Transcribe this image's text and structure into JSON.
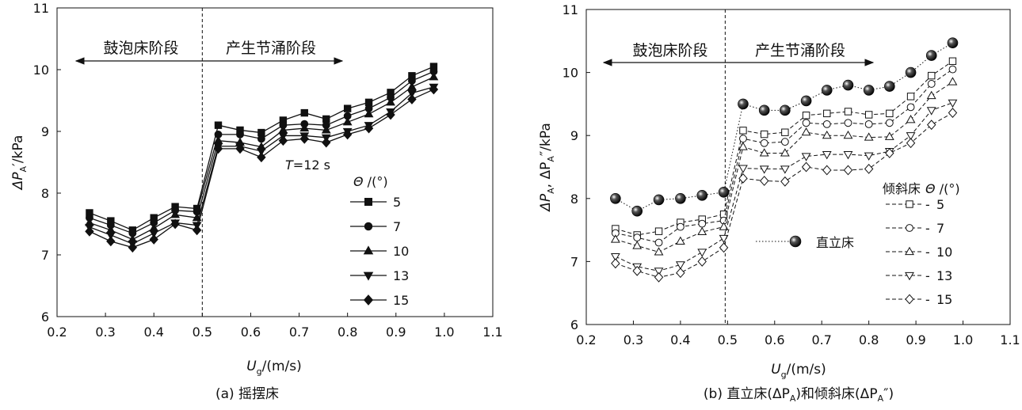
{
  "chart_data": [
    {
      "type": "line",
      "caption": "(a) 摇摆床",
      "xlabel_main": "U",
      "xlabel_sub": "g",
      "xlabel_unit": "/(m/s)",
      "ylabel_main": "ΔP",
      "ylabel_sub": "A",
      "ylabel_unit": "′/kPa",
      "xlim": [
        0.2,
        1.1
      ],
      "ylim": [
        6,
        11
      ],
      "xticks": [
        "0.2",
        "0.3",
        "0.4",
        "0.5",
        "0.6",
        "0.7",
        "0.8",
        "0.9",
        "1.0",
        "1.1"
      ],
      "yticks": [
        "6",
        "7",
        "8",
        "9",
        "10",
        "11"
      ],
      "divider_x": 0.5,
      "phase_left": "鼓泡床阶段",
      "phase_right": "产生节涌阶段",
      "annotation_italic": "T",
      "annotation_rest": "=12 s",
      "legend_title_italic": "Θ",
      "legend_title_rest": " /(°)",
      "x": [
        0.267,
        0.311,
        0.356,
        0.4,
        0.444,
        0.489,
        0.533,
        0.578,
        0.622,
        0.667,
        0.711,
        0.756,
        0.8,
        0.844,
        0.889,
        0.933,
        0.978
      ],
      "series": [
        {
          "name": "5",
          "marker": "square",
          "values": [
            7.68,
            7.55,
            7.4,
            7.6,
            7.78,
            7.75,
            9.1,
            9.02,
            8.98,
            9.18,
            9.3,
            9.2,
            9.37,
            9.47,
            9.63,
            9.9,
            10.05
          ]
        },
        {
          "name": "7",
          "marker": "circle",
          "values": [
            7.6,
            7.48,
            7.35,
            7.52,
            7.72,
            7.7,
            8.95,
            8.95,
            8.88,
            9.1,
            9.12,
            9.1,
            9.25,
            9.37,
            9.55,
            9.82,
            9.97
          ]
        },
        {
          "name": "10",
          "marker": "triangle-up",
          "values": [
            7.52,
            7.4,
            7.25,
            7.43,
            7.65,
            7.6,
            8.85,
            8.82,
            8.75,
            9.02,
            9.05,
            9.02,
            9.15,
            9.28,
            9.47,
            9.72,
            9.88
          ]
        },
        {
          "name": "13",
          "marker": "triangle-down",
          "values": [
            7.45,
            7.32,
            7.18,
            7.35,
            7.52,
            7.48,
            8.76,
            8.76,
            8.68,
            8.93,
            8.93,
            8.9,
            9.0,
            9.1,
            9.32,
            9.62,
            9.72
          ]
        },
        {
          "name": "15",
          "marker": "diamond",
          "values": [
            7.38,
            7.22,
            7.12,
            7.25,
            7.5,
            7.4,
            8.72,
            8.72,
            8.58,
            8.85,
            8.88,
            8.82,
            8.95,
            9.05,
            9.27,
            9.52,
            9.68
          ]
        }
      ]
    },
    {
      "type": "line",
      "caption_prefix": "(b) 直立床(ΔP",
      "caption_sub1": "A",
      "caption_mid": ")和倾斜床(ΔP",
      "caption_sub2": "A",
      "caption_suffix": "″)",
      "xlabel_main": "U",
      "xlabel_sub": "g",
      "xlabel_unit": "/(m/s)",
      "ylabel_a": "ΔP",
      "ylabel_a_sub": "A",
      "ylabel_b": ", ΔP",
      "ylabel_b_sub": "A",
      "ylabel_unit": "″/kPa",
      "xlim": [
        0.2,
        1.1
      ],
      "ylim": [
        6,
        11
      ],
      "xticks": [
        "0.2",
        "0.3",
        "0.4",
        "0.5",
        "0.6",
        "0.7",
        "0.8",
        "0.9",
        "1.0",
        "1.1"
      ],
      "yticks": [
        "6",
        "7",
        "8",
        "9",
        "10",
        "11"
      ],
      "divider_x": 0.495,
      "phase_left": "鼓泡床阶段",
      "phase_right": "产生节涌阶段",
      "legend_title": "倾斜床",
      "legend_title_italic": "Θ",
      "legend_title_rest": " /(°)",
      "x": [
        0.262,
        0.308,
        0.354,
        0.4,
        0.446,
        0.492,
        0.533,
        0.578,
        0.622,
        0.667,
        0.711,
        0.756,
        0.8,
        0.844,
        0.889,
        0.933,
        0.978
      ],
      "upright": {
        "name": "直立床",
        "values": [
          8.0,
          7.8,
          7.98,
          8.0,
          8.05,
          8.1,
          9.5,
          9.4,
          9.4,
          9.55,
          9.72,
          9.8,
          9.72,
          9.78,
          10.0,
          10.27,
          10.47
        ]
      },
      "series": [
        {
          "name": "5",
          "marker": "square",
          "values": [
            7.52,
            7.42,
            7.48,
            7.62,
            7.67,
            7.75,
            9.08,
            9.02,
            9.05,
            9.32,
            9.35,
            9.38,
            9.33,
            9.35,
            9.62,
            9.95,
            10.18
          ]
        },
        {
          "name": "7",
          "marker": "circle",
          "values": [
            7.45,
            7.38,
            7.3,
            7.55,
            7.6,
            7.65,
            8.95,
            8.88,
            8.9,
            9.2,
            9.18,
            9.2,
            9.18,
            9.2,
            9.45,
            9.82,
            10.05
          ]
        },
        {
          "name": "10",
          "marker": "triangle-up",
          "values": [
            7.35,
            7.25,
            7.15,
            7.32,
            7.47,
            7.55,
            8.82,
            8.72,
            8.72,
            9.05,
            9.0,
            9.0,
            8.97,
            8.98,
            9.25,
            9.63,
            9.85
          ]
        },
        {
          "name": "13",
          "marker": "triangle-down",
          "values": [
            7.08,
            6.92,
            6.85,
            6.95,
            7.15,
            7.37,
            8.48,
            8.47,
            8.47,
            8.67,
            8.7,
            8.7,
            8.68,
            8.75,
            9.0,
            9.4,
            9.52
          ]
        },
        {
          "name": "15",
          "marker": "diamond",
          "values": [
            6.97,
            6.85,
            6.75,
            6.82,
            7.0,
            7.22,
            8.32,
            8.28,
            8.27,
            8.5,
            8.45,
            8.45,
            8.47,
            8.72,
            8.88,
            9.17,
            9.36
          ]
        }
      ]
    }
  ]
}
